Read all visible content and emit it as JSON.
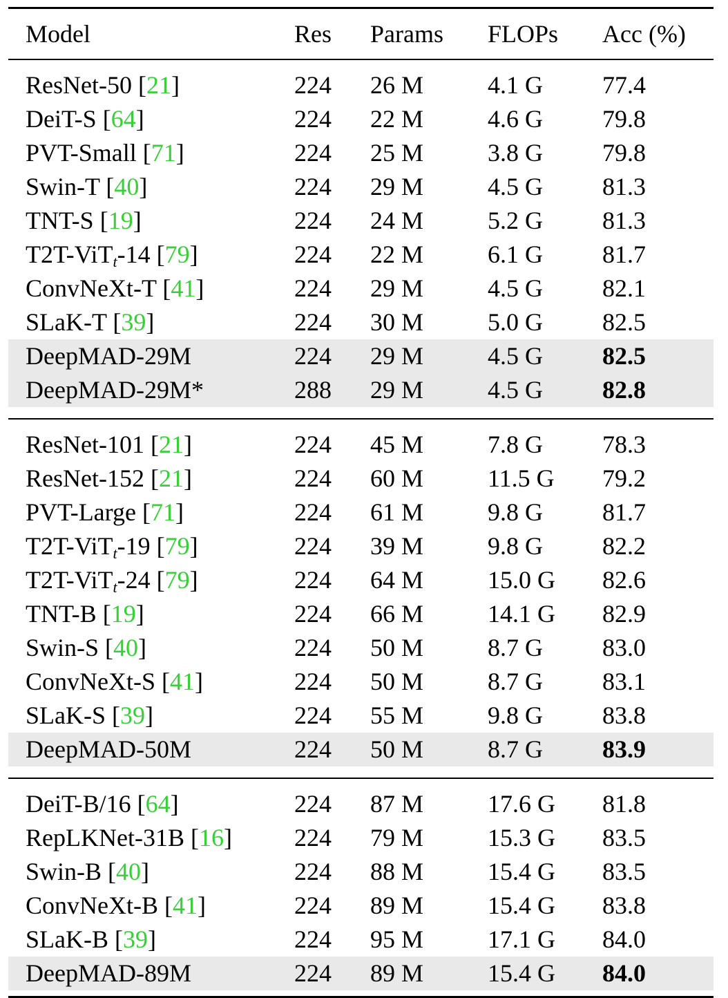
{
  "headers": [
    "Model",
    "Res",
    "Params",
    "FLOPs",
    "Acc (%)"
  ],
  "groups": [
    {
      "rows": [
        {
          "model": "ResNet-50",
          "cite": "21",
          "res": "224",
          "params": "26 M",
          "flops": "4.1 G",
          "acc": "77.4"
        },
        {
          "model": "DeiT-S",
          "cite": "64",
          "res": "224",
          "params": "22 M",
          "flops": "4.6 G",
          "acc": "79.8"
        },
        {
          "model": "PVT-Small",
          "cite": "71",
          "res": "224",
          "params": "25 M",
          "flops": "3.8 G",
          "acc": "79.8"
        },
        {
          "model": "Swin-T",
          "cite": "40",
          "res": "224",
          "params": "29 M",
          "flops": "4.5 G",
          "acc": "81.3"
        },
        {
          "model": "TNT-S",
          "cite": "19",
          "res": "224",
          "params": "24 M",
          "flops": "5.2 G",
          "acc": "81.3"
        },
        {
          "model": "T2T-ViT",
          "sub": "t",
          "suffix": "-14",
          "cite": "79",
          "res": "224",
          "params": "22 M",
          "flops": "6.1 G",
          "acc": "81.7"
        },
        {
          "model": "ConvNeXt-T",
          "cite": "41",
          "res": "224",
          "params": "29 M",
          "flops": "4.5 G",
          "acc": "82.1"
        },
        {
          "model": "SLaK-T",
          "cite": "39",
          "res": "224",
          "params": "30 M",
          "flops": "5.0 G",
          "acc": "82.5"
        },
        {
          "model": "DeepMAD-29M",
          "res": "224",
          "params": "29 M",
          "flops": "4.5 G",
          "acc": "82.5",
          "highlight": true
        },
        {
          "model": "DeepMAD-29M*",
          "res": "288",
          "params": "29 M",
          "flops": "4.5 G",
          "acc": "82.8",
          "highlight": true
        }
      ]
    },
    {
      "rows": [
        {
          "model": "ResNet-101",
          "cite": "21",
          "res": "224",
          "params": "45 M",
          "flops": "7.8 G",
          "acc": "78.3"
        },
        {
          "model": "ResNet-152",
          "cite": "21",
          "res": "224",
          "params": "60 M",
          "flops": "11.5 G",
          "acc": "79.2"
        },
        {
          "model": "PVT-Large",
          "cite": "71",
          "res": "224",
          "params": "61 M",
          "flops": "9.8 G",
          "acc": "81.7"
        },
        {
          "model": "T2T-ViT",
          "sub": "t",
          "suffix": "-19",
          "cite": "79",
          "res": "224",
          "params": "39 M",
          "flops": "9.8 G",
          "acc": "82.2"
        },
        {
          "model": "T2T-ViT",
          "sub": "t",
          "suffix": "-24",
          "cite": "79",
          "res": "224",
          "params": "64 M",
          "flops": "15.0 G",
          "acc": "82.6"
        },
        {
          "model": "TNT-B",
          "cite": "19",
          "res": "224",
          "params": "66 M",
          "flops": "14.1 G",
          "acc": "82.9"
        },
        {
          "model": "Swin-S",
          "cite": "40",
          "res": "224",
          "params": "50 M",
          "flops": "8.7 G",
          "acc": "83.0"
        },
        {
          "model": "ConvNeXt-S",
          "cite": "41",
          "res": "224",
          "params": "50 M",
          "flops": "8.7 G",
          "acc": "83.1"
        },
        {
          "model": "SLaK-S",
          "cite": "39",
          "res": "224",
          "params": "55 M",
          "flops": "9.8 G",
          "acc": "83.8"
        },
        {
          "model": "DeepMAD-50M",
          "res": "224",
          "params": "50 M",
          "flops": "8.7 G",
          "acc": "83.9",
          "highlight": true
        }
      ]
    },
    {
      "rows": [
        {
          "model": "DeiT-B/16",
          "cite": "64",
          "res": "224",
          "params": "87 M",
          "flops": "17.6 G",
          "acc": "81.8"
        },
        {
          "model": "RepLKNet-31B",
          "cite": "16",
          "res": "224",
          "params": "79 M",
          "flops": "15.3 G",
          "acc": "83.5"
        },
        {
          "model": "Swin-B",
          "cite": "40",
          "res": "224",
          "params": "88 M",
          "flops": "15.4 G",
          "acc": "83.5"
        },
        {
          "model": "ConvNeXt-B",
          "cite": "41",
          "res": "224",
          "params": "89 M",
          "flops": "15.4 G",
          "acc": "83.8"
        },
        {
          "model": "SLaK-B",
          "cite": "39",
          "res": "224",
          "params": "95 M",
          "flops": "17.1 G",
          "acc": "84.0"
        },
        {
          "model": "DeepMAD-89M",
          "res": "224",
          "params": "89 M",
          "flops": "15.4 G",
          "acc": "84.0",
          "highlight": true
        }
      ]
    }
  ]
}
